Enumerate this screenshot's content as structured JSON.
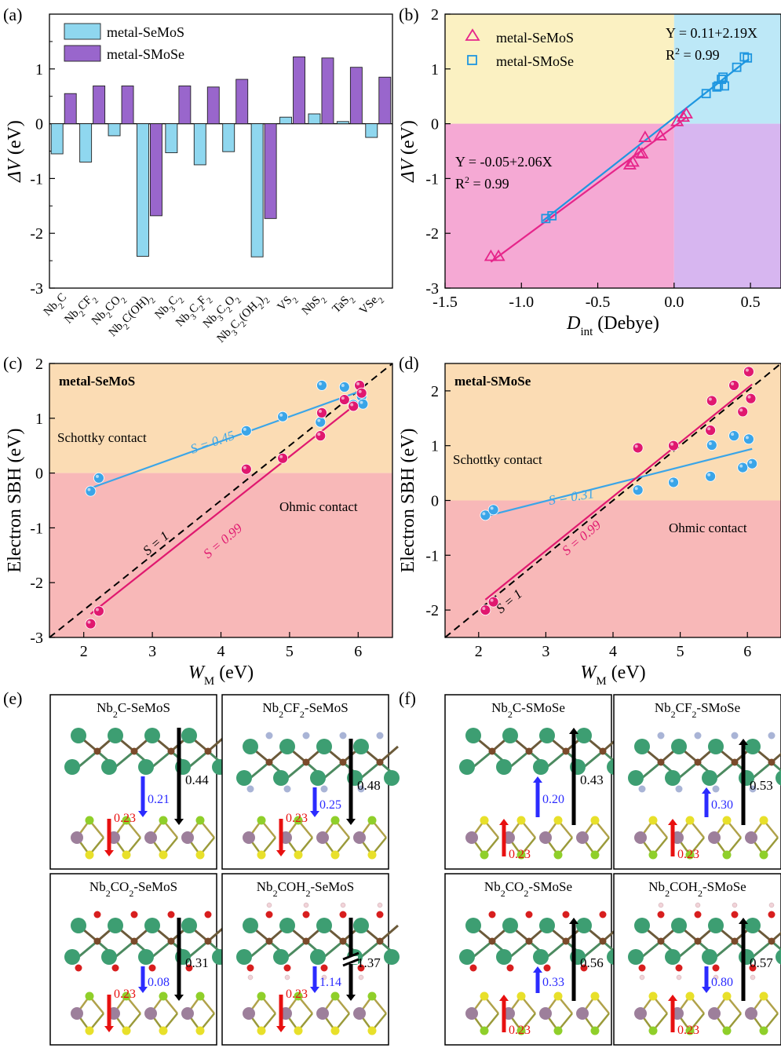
{
  "panels": {
    "a": {
      "label": "(a)"
    },
    "b": {
      "label": "(b)"
    },
    "c": {
      "label": "(c)"
    },
    "d": {
      "label": "(d)"
    },
    "e": {
      "label": "(e)"
    },
    "f": {
      "label": "(f)"
    }
  },
  "chart_data": [
    {
      "id": "a",
      "type": "bar",
      "ylabel_italic": "ΔV",
      "ylabel_rest": " (eV)",
      "ylim": [
        -3,
        2
      ],
      "yticks": [
        -3,
        -2,
        -1,
        0,
        1
      ],
      "categories": [
        {
          "base": "Nb",
          "parts": [
            [
              "Nb",
              "n"
            ],
            [
              "2",
              "s"
            ],
            [
              "C",
              "n"
            ]
          ]
        },
        {
          "parts": [
            [
              "Nb",
              "n"
            ],
            [
              "2",
              "s"
            ],
            [
              "CF",
              "n"
            ],
            [
              "2",
              "s"
            ]
          ]
        },
        {
          "parts": [
            [
              "Nb",
              "n"
            ],
            [
              "2",
              "s"
            ],
            [
              "CO",
              "n"
            ],
            [
              "2",
              "s"
            ]
          ]
        },
        {
          "parts": [
            [
              "Nb",
              "n"
            ],
            [
              "2",
              "s"
            ],
            [
              "C(OH)",
              "n"
            ],
            [
              "2",
              "s"
            ]
          ]
        },
        {
          "parts": [
            [
              "Nb",
              "n"
            ],
            [
              "3",
              "s"
            ],
            [
              "C",
              "n"
            ],
            [
              "2",
              "s"
            ]
          ]
        },
        {
          "parts": [
            [
              "Nb",
              "n"
            ],
            [
              "3",
              "s"
            ],
            [
              "C",
              "n"
            ],
            [
              "2",
              "s"
            ],
            [
              "F",
              "n"
            ],
            [
              "2",
              "s"
            ]
          ]
        },
        {
          "parts": [
            [
              "Nb",
              "n"
            ],
            [
              "3",
              "s"
            ],
            [
              "C",
              "n"
            ],
            [
              "2",
              "s"
            ],
            [
              "O",
              "n"
            ],
            [
              "2",
              "s"
            ]
          ]
        },
        {
          "parts": [
            [
              "Nb",
              "n"
            ],
            [
              "3",
              "s"
            ],
            [
              "C",
              "n"
            ],
            [
              "2",
              "s"
            ],
            [
              "(OH",
              "n"
            ],
            [
              "2",
              "s"
            ],
            [
              ")",
              "n"
            ],
            [
              "2",
              "s"
            ]
          ]
        },
        {
          "parts": [
            [
              "VS",
              "n"
            ],
            [
              "2",
              "s"
            ]
          ]
        },
        {
          "parts": [
            [
              "NbS",
              "n"
            ],
            [
              "2",
              "s"
            ]
          ]
        },
        {
          "parts": [
            [
              "TaS",
              "n"
            ],
            [
              "2",
              "s"
            ]
          ]
        },
        {
          "parts": [
            [
              "VSe",
              "n"
            ],
            [
              "2",
              "s"
            ]
          ]
        }
      ],
      "series": [
        {
          "name": "metal-SeMoS",
          "color": "#8fd7ef",
          "values": [
            -0.55,
            -0.7,
            -0.22,
            -2.42,
            -0.53,
            -0.75,
            -0.51,
            -2.43,
            0.12,
            0.18,
            0.04,
            -0.25
          ]
        },
        {
          "name": "metal-SMoSe",
          "color": "#9966cc",
          "values": [
            0.55,
            0.69,
            0.69,
            -1.68,
            0.69,
            0.67,
            0.81,
            -1.73,
            1.22,
            1.2,
            1.03,
            0.85
          ]
        }
      ],
      "legend": "top-left"
    },
    {
      "id": "b",
      "type": "scatter",
      "xlabel_italic": "D",
      "xlabel_sub": "int",
      "xlabel_rest": " (Debye)",
      "ylabel_italic": "ΔV",
      "ylabel_rest": " (eV)",
      "xlim": [
        -1.5,
        0.7
      ],
      "ylim": [
        -3,
        2
      ],
      "xticks": [
        -1.5,
        -1.0,
        -0.5,
        0.0,
        0.5
      ],
      "xtick_labels": [
        "-1.5",
        "-1.0",
        "-0.5",
        "0.0",
        "0.5"
      ],
      "yticks": [
        -3,
        -2,
        -1,
        0,
        1,
        2
      ],
      "quadrant_colors": {
        "top_left": "#fbf1c2",
        "top_right": "#bde8f7",
        "bottom_left": "#f5a9d4",
        "bottom_right": "#d7b6f0"
      },
      "series": [
        {
          "name": "metal-SeMoS",
          "marker": "triangle",
          "color": "#e6258a",
          "x": [
            -1.2,
            -1.15,
            -0.29,
            -0.27,
            -0.23,
            -0.21,
            -0.19,
            -0.09,
            0.02,
            0.06,
            0.08
          ],
          "y": [
            -2.42,
            -2.42,
            -0.75,
            -0.7,
            -0.53,
            -0.55,
            -0.25,
            -0.22,
            0.04,
            0.12,
            0.18
          ],
          "fit": {
            "intercept": -0.05,
            "slope": 2.06,
            "x_range": [
              -1.2,
              0.08
            ]
          }
        },
        {
          "name": "metal-SMoSe",
          "marker": "square",
          "color": "#1e96e0",
          "x": [
            -0.84,
            -0.8,
            0.21,
            0.28,
            0.29,
            0.31,
            0.32,
            0.33,
            0.41,
            0.46,
            0.48
          ],
          "y": [
            -1.73,
            -1.68,
            0.55,
            0.67,
            0.69,
            0.81,
            0.85,
            0.69,
            1.03,
            1.22,
            1.2
          ],
          "fit": {
            "intercept": 0.11,
            "slope": 2.19,
            "x_range": [
              -0.86,
              0.49
            ]
          }
        }
      ],
      "annotations": {
        "fit_blue_eq": "Y = 0.11+2.19X",
        "fit_blue_r2_pre": "R",
        "fit_blue_r2_sup": "2",
        "fit_blue_r2_post": " = 0.99",
        "fit_pink_eq": "Y = -0.05+2.06X",
        "fit_pink_r2_pre": "R",
        "fit_pink_r2_sup": "2",
        "fit_pink_r2_post": " = 0.99"
      },
      "legend": "top-left"
    },
    {
      "id": "c",
      "type": "scatter",
      "title": "metal-SeMoS",
      "xlabel_italic": "W",
      "xlabel_sub": "M",
      "xlabel_rest": " (eV)",
      "ylabel": "Electron SBH (eV)",
      "xlim": [
        1.5,
        6.5
      ],
      "ylim": [
        -3,
        2
      ],
      "xticks": [
        2,
        3,
        4,
        5,
        6
      ],
      "yticks": [
        -3,
        -2,
        -1,
        0,
        1,
        2
      ],
      "region_labels": {
        "upper": "Schottky contact",
        "lower": "Ohmic contact"
      },
      "slope_labels": {
        "blue": "S = 0.45",
        "pink": "S = 0.99",
        "ref": "S = 1"
      },
      "series": [
        {
          "name": "blue",
          "color": "#3aa5e8",
          "x": [
            2.1,
            2.22,
            4.37,
            4.9,
            5.45,
            5.47,
            5.8,
            5.93,
            6.05,
            6.07
          ],
          "y": [
            -0.33,
            -0.09,
            0.77,
            1.03,
            0.93,
            1.6,
            1.57,
            1.25,
            1.4,
            1.26
          ],
          "fit": {
            "intercept": -1.22,
            "slope": 0.45,
            "x_range": [
              2.1,
              6.08
            ]
          }
        },
        {
          "name": "pink",
          "color": "#e0186f",
          "x": [
            2.1,
            2.22,
            4.37,
            4.9,
            5.45,
            5.47,
            5.8,
            5.93,
            6.02,
            6.05
          ],
          "y": [
            -2.75,
            -2.52,
            0.07,
            0.27,
            0.68,
            1.1,
            1.34,
            1.22,
            1.6,
            1.46
          ],
          "fit": {
            "intercept": -4.65,
            "slope": 0.99,
            "x_range": [
              2.1,
              6.07
            ]
          }
        }
      ]
    },
    {
      "id": "d",
      "type": "scatter",
      "title": "metal-SMoSe",
      "xlabel_italic": "W",
      "xlabel_sub": "M",
      "xlabel_rest": " (eV)",
      "ylabel": "Electron SBH (eV)",
      "xlim": [
        1.5,
        6.5
      ],
      "ylim": [
        -2.5,
        2.5
      ],
      "xticks": [
        2,
        3,
        4,
        5,
        6
      ],
      "yticks": [
        -2,
        -1,
        0,
        1,
        2
      ],
      "region_labels": {
        "upper": "Schottky contact",
        "lower": "Ohmic contact"
      },
      "slope_labels": {
        "blue": "S = 0.31",
        "pink": "S = 0.99",
        "ref": "S = 1"
      },
      "series": [
        {
          "name": "blue",
          "color": "#3aa5e8",
          "x": [
            2.1,
            2.22,
            4.37,
            4.9,
            5.45,
            5.47,
            5.8,
            5.93,
            6.02,
            6.07
          ],
          "y": [
            -0.27,
            -0.17,
            0.19,
            0.33,
            0.44,
            1.01,
            1.18,
            0.6,
            1.12,
            0.67
          ],
          "fit": {
            "intercept": -0.94,
            "slope": 0.31,
            "x_range": [
              2.1,
              6.07
            ]
          }
        },
        {
          "name": "pink",
          "color": "#e0186f",
          "x": [
            2.1,
            2.22,
            4.37,
            4.9,
            5.45,
            5.47,
            5.8,
            5.93,
            6.02,
            6.05
          ],
          "y": [
            -2.0,
            -1.85,
            0.96,
            1.0,
            1.28,
            1.82,
            2.1,
            1.62,
            2.35,
            1.86
          ],
          "fit": {
            "intercept": -3.89,
            "slope": 0.99,
            "x_range": [
              2.1,
              6.07
            ]
          }
        }
      ]
    }
  ],
  "structures": {
    "e": [
      {
        "title_parts": [
          [
            "Nb",
            "n"
          ],
          [
            "2",
            "s"
          ],
          [
            "C-SeMoS",
            "n"
          ]
        ],
        "blue": "0.21",
        "red": "0.23",
        "black": "0.44",
        "arrow": "down",
        "term": "none",
        "bottom": "SeMoS"
      },
      {
        "title_parts": [
          [
            "Nb",
            "n"
          ],
          [
            "2",
            "s"
          ],
          [
            "CF",
            "n"
          ],
          [
            "2",
            "s"
          ],
          [
            "-SeMoS",
            "n"
          ]
        ],
        "blue": "0.25",
        "red": "0.23",
        "black": "0.48",
        "arrow": "down",
        "term": "F",
        "bottom": "SeMoS"
      },
      {
        "title_parts": [
          [
            "Nb",
            "n"
          ],
          [
            "2",
            "s"
          ],
          [
            "CO",
            "n"
          ],
          [
            "2",
            "s"
          ],
          [
            "-SeMoS",
            "n"
          ]
        ],
        "blue": "0.08",
        "red": "0.23",
        "black": "0.31",
        "arrow": "down",
        "term": "O",
        "bottom": "SeMoS"
      },
      {
        "title_parts": [
          [
            "Nb",
            "n"
          ],
          [
            "2",
            "s"
          ],
          [
            "COH",
            "n"
          ],
          [
            "2",
            "s"
          ],
          [
            "-SeMoS",
            "n"
          ]
        ],
        "blue": "1.14",
        "red": "0.23",
        "black": "1.37",
        "arrow": "down",
        "term": "OH",
        "bottom": "SeMoS",
        "broken": true
      }
    ],
    "f": [
      {
        "title_parts": [
          [
            "Nb",
            "n"
          ],
          [
            "2",
            "s"
          ],
          [
            "C-SMoSe",
            "n"
          ]
        ],
        "blue": "0.20",
        "red": "0.23",
        "black": "0.43",
        "arrow": "up",
        "term": "none",
        "bottom": "SMoSe"
      },
      {
        "title_parts": [
          [
            "Nb",
            "n"
          ],
          [
            "2",
            "s"
          ],
          [
            "CF",
            "n"
          ],
          [
            "2",
            "s"
          ],
          [
            "-SMoSe",
            "n"
          ]
        ],
        "blue": "0.30",
        "red": "0.23",
        "black": "0.53",
        "arrow": "up",
        "term": "F",
        "bottom": "SMoSe"
      },
      {
        "title_parts": [
          [
            "Nb",
            "n"
          ],
          [
            "2",
            "s"
          ],
          [
            "CO",
            "n"
          ],
          [
            "2",
            "s"
          ],
          [
            "-SMoSe",
            "n"
          ]
        ],
        "blue": "0.33",
        "red": "0.23",
        "black": "0.56",
        "arrow": "up",
        "term": "O",
        "bottom": "SMoSe"
      },
      {
        "title_parts": [
          [
            "Nb",
            "n"
          ],
          [
            "2",
            "s"
          ],
          [
            "COH",
            "n"
          ],
          [
            "2",
            "s"
          ],
          [
            "-SMoSe",
            "n"
          ]
        ],
        "blue": "0.80",
        "red": "0.23",
        "black": "0.57",
        "arrow": "up",
        "term": "OH",
        "bottom": "SMoSe",
        "blue_down": true
      }
    ]
  },
  "colors": {
    "nb_atom": "#3d9e72",
    "c_atom": "#7a4a2a",
    "f_atom": "#a9b4d6",
    "o_atom": "#d81e1e",
    "h_atom": "#f1d3d8",
    "mo_atom": "#9d7f9b",
    "se_atom": "#8fcf2a",
    "s_atom": "#e8e02a",
    "blue_arrow": "#2b2bff",
    "red_arrow": "#e81010",
    "schottky": "#fbdcb4",
    "ohmic": "#f8b8b8"
  }
}
